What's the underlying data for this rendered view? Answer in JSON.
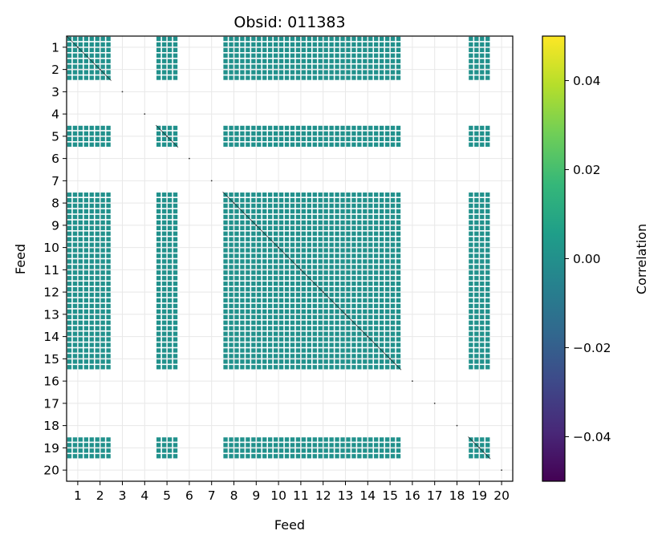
{
  "chart_data": {
    "type": "heatmap",
    "title": "Obsid: 011383",
    "xlabel": "Feed",
    "ylabel": "Feed",
    "feeds": [
      "1",
      "2",
      "3",
      "4",
      "5",
      "6",
      "7",
      "8",
      "9",
      "10",
      "11",
      "12",
      "13",
      "14",
      "15",
      "16",
      "17",
      "18",
      "19",
      "20"
    ],
    "xlim": [
      0.5,
      20.5
    ],
    "ylim": [
      20.5,
      0.5
    ],
    "grid": true,
    "value_range": [
      -0.05,
      0.05
    ],
    "fill_value": 0.0,
    "fill_color": "#21918c",
    "active_feeds": [
      1,
      2,
      5,
      8,
      9,
      10,
      11,
      12,
      13,
      14,
      15,
      19
    ],
    "inactive_feeds": [
      3,
      4,
      6,
      7,
      16,
      17,
      18,
      20
    ],
    "colorbar": {
      "label": "Correlation",
      "ticks": [
        0.04,
        0.02,
        0.0,
        -0.02,
        -0.04
      ],
      "tick_labels": [
        "0.04",
        "0.02",
        "0.00",
        "−0.02",
        "−0.04"
      ],
      "colormap": [
        "#440154",
        "#482878",
        "#3e4989",
        "#31688e",
        "#26828e",
        "#1f9e89",
        "#35b779",
        "#6ece58",
        "#b5de2b",
        "#fde725"
      ]
    }
  }
}
